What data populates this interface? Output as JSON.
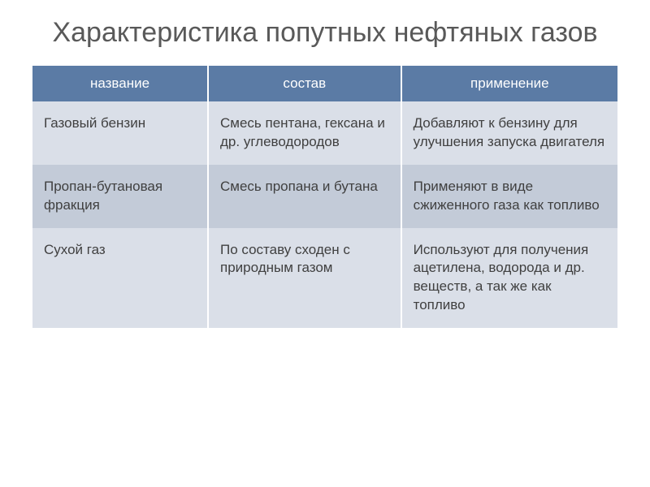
{
  "slide": {
    "title": "Характеристика попутных нефтяных газов",
    "title_color": "#595959",
    "title_fontsize": 34,
    "background_color": "#ffffff"
  },
  "table": {
    "header_bg": "#5b7ba5",
    "header_text_color": "#ffffff",
    "row_odd_bg": "#dadfe8",
    "row_even_bg": "#c3cbd8",
    "cell_text_color": "#404040",
    "border_color": "#ffffff",
    "fontsize": 17,
    "columns": [
      {
        "label": "название",
        "width": "30%"
      },
      {
        "label": "состав",
        "width": "33%"
      },
      {
        "label": "применение",
        "width": "37%"
      }
    ],
    "rows": [
      {
        "name": "Газовый бензин",
        "composition": "Смесь пентана, гексана и др. углеводородов",
        "usage": "Добавляют к бензину для улучшения запуска двигателя"
      },
      {
        "name": "Пропан-бутановая фракция",
        "composition": "Смесь пропана и бутана",
        "usage": "Применяют в виде сжиженного газа как топливо"
      },
      {
        "name": "Сухой газ",
        "composition": "По составу сходен с природным газом",
        "usage": "Используют для получения ацетилена, водорода и др. веществ, а так же как топливо"
      }
    ]
  }
}
